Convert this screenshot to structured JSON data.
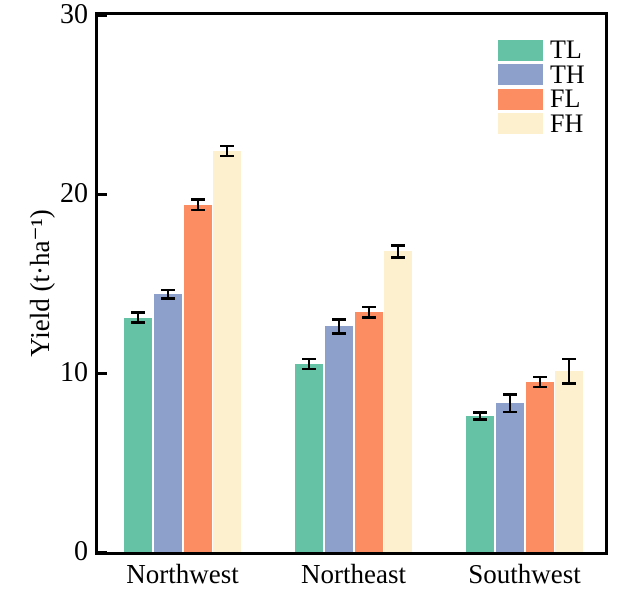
{
  "chart_data": {
    "type": "bar",
    "title": "",
    "xlabel": "",
    "ylabel": "Yield (t·ha⁻¹)",
    "categories": [
      "Northwest",
      "Northeast",
      "Southwest"
    ],
    "series": [
      {
        "name": "TL",
        "color": "#66C2A5",
        "values": [
          13.1,
          10.5,
          7.6
        ],
        "errors": [
          0.3,
          0.3,
          0.2
        ]
      },
      {
        "name": "TH",
        "color": "#8DA0CB",
        "values": [
          14.4,
          12.6,
          8.3
        ],
        "errors": [
          0.25,
          0.4,
          0.5
        ]
      },
      {
        "name": "FL",
        "color": "#FC8D62",
        "values": [
          19.4,
          13.4,
          9.5
        ],
        "errors": [
          0.3,
          0.3,
          0.3
        ]
      },
      {
        "name": "FH",
        "color": "#FCF0CE",
        "values": [
          22.4,
          16.8,
          10.1
        ],
        "errors": [
          0.3,
          0.35,
          0.7
        ]
      }
    ],
    "ylim": [
      0,
      30
    ],
    "yticks": [
      0,
      10,
      20,
      30
    ],
    "grid": false,
    "legend_position": "upper right",
    "error_bar_color": "#000000",
    "axis_color": "#000000"
  }
}
